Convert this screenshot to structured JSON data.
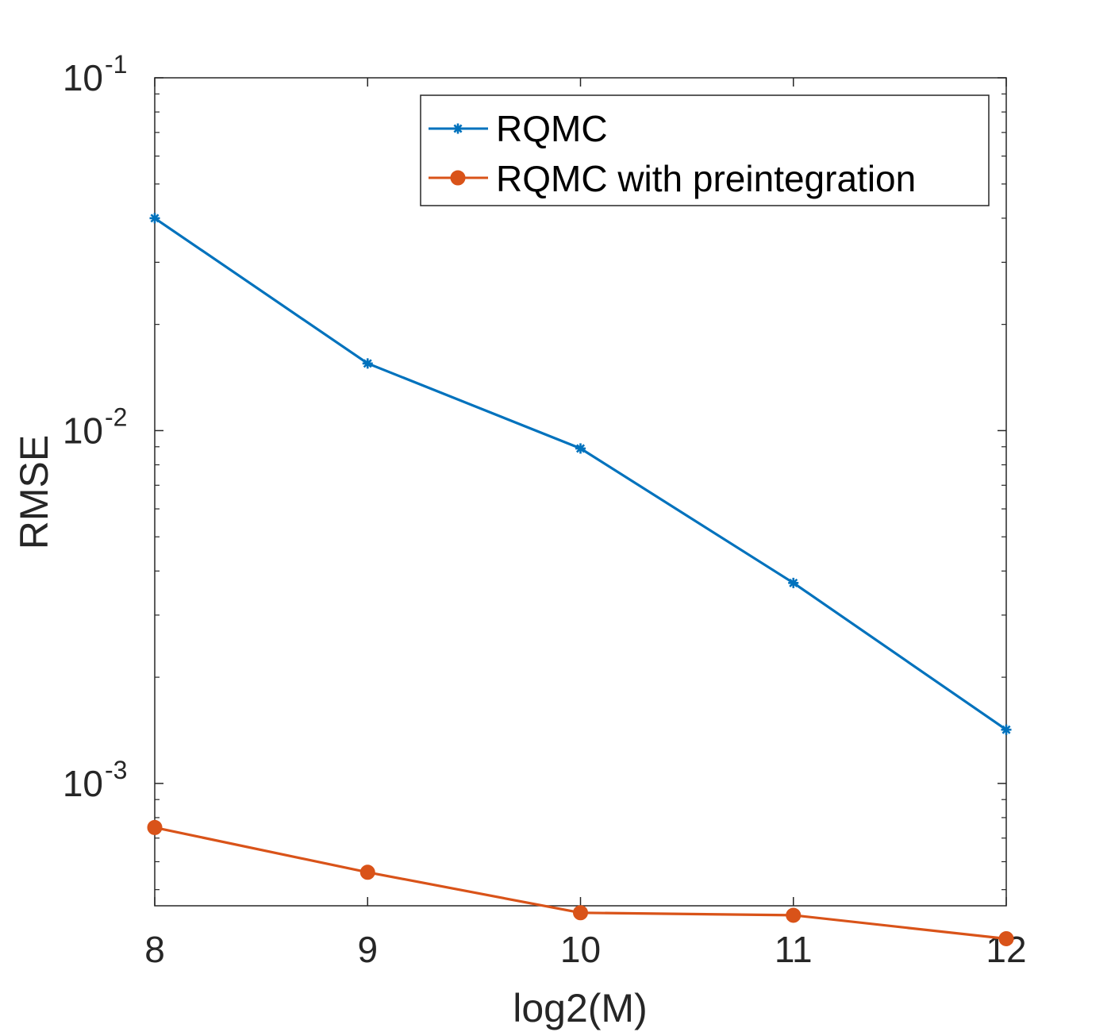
{
  "chart_data": {
    "type": "line",
    "title": "",
    "xlabel": "log2(M)",
    "ylabel": "RMSE",
    "x": [
      8,
      9,
      10,
      11,
      12
    ],
    "xlim": [
      8,
      12
    ],
    "ylim": [
      0.00045,
      0.1
    ],
    "yscale": "log",
    "x_ticks": [
      "8",
      "9",
      "10",
      "11",
      "12"
    ],
    "y_ticks": [
      {
        "value": 0.001,
        "base": "10",
        "exp": "-3"
      },
      {
        "value": 0.01,
        "base": "10",
        "exp": "-2"
      },
      {
        "value": 0.1,
        "base": "10",
        "exp": "-1"
      }
    ],
    "grid": false,
    "legend_position": "top-right",
    "series": [
      {
        "name": "RQMC",
        "color": "#0072BD",
        "marker": "asterisk",
        "values": [
          0.04,
          0.0155,
          0.0089,
          0.0037,
          0.00142
        ]
      },
      {
        "name": "RQMC with preintegration",
        "color": "#D95319",
        "marker": "circle",
        "values": [
          0.00075,
          0.00056,
          0.00043,
          0.000423,
          0.000363
        ]
      }
    ]
  }
}
